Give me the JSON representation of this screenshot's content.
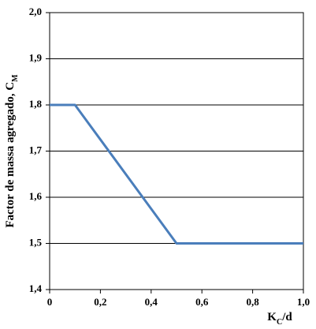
{
  "chart_data": {
    "type": "line",
    "ylabel": [
      "Factor de massa agregado, C",
      "M"
    ],
    "xlabel": [
      "K",
      "C",
      "/d"
    ],
    "x": [
      0,
      0.1,
      0.5,
      1.0
    ],
    "series": [
      {
        "name": "C_M",
        "color": "#4a7ebb",
        "values": [
          1.8,
          1.8,
          1.5,
          1.5
        ]
      }
    ],
    "xlim": [
      0,
      1
    ],
    "xticks": [
      0,
      {
        "value": 0.2,
        "label": "0,2"
      },
      {
        "value": 0.4,
        "label": "0,4"
      },
      {
        "value": 0.6,
        "label": "0,6"
      },
      {
        "value": 0.8,
        "label": "0,8"
      },
      {
        "value": 1,
        "label": "1,0"
      }
    ],
    "ylim": [
      1.4,
      2.0
    ],
    "yticks": [
      {
        "value": 1.4,
        "label": "1,4"
      },
      {
        "value": 1.5,
        "label": "1,5"
      },
      {
        "value": 1.6,
        "label": "1,6"
      },
      {
        "value": 1.7,
        "label": "1,7"
      },
      {
        "value": 1.8,
        "label": "1,8"
      },
      {
        "value": 1.9,
        "label": "1,9"
      },
      {
        "value": 2.0,
        "label": "2,0"
      }
    ],
    "grid": true
  }
}
